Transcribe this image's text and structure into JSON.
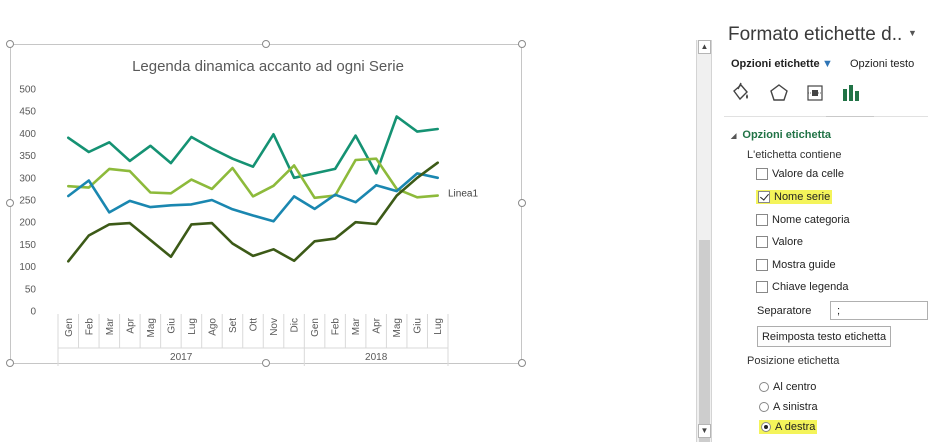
{
  "chart_data": {
    "type": "line",
    "title": "Legenda dinamica accanto ad ogni Serie",
    "categories": [
      "Gen",
      "Feb",
      "Mar",
      "Apr",
      "Mag",
      "Giu",
      "Lug",
      "Ago",
      "Set",
      "Ott",
      "Nov",
      "Dic",
      "Gen",
      "Feb",
      "Mar",
      "Apr",
      "Mag",
      "Giu",
      "Lug"
    ],
    "groups": [
      {
        "label": "2017",
        "start": 0,
        "end": 11
      },
      {
        "label": "2018",
        "start": 12,
        "end": 18
      }
    ],
    "ylim": [
      0,
      500
    ],
    "yticks": [
      "0",
      "50",
      "100",
      "150",
      "200",
      "250",
      "300",
      "350",
      "400",
      "450",
      "500"
    ],
    "grid": false,
    "legend": "none",
    "series_label": "Linea1",
    "series": [
      {
        "color": "#159273",
        "values": [
          390,
          358,
          380,
          338,
          372,
          333,
          392,
          366,
          343,
          325,
          398,
          300,
          310,
          320,
          395,
          310,
          438,
          404,
          410
        ]
      },
      {
        "color": "#8dba3b",
        "values": [
          281,
          278,
          320,
          315,
          267,
          265,
          296,
          275,
          322,
          258,
          282,
          328,
          255,
          260,
          340,
          343,
          275,
          256,
          260
        ]
      },
      {
        "color": "#1a87b0",
        "values": [
          259,
          294,
          222,
          248,
          234,
          238,
          240,
          250,
          229,
          215,
          202,
          258,
          230,
          262,
          245,
          283,
          270,
          310,
          300
        ]
      },
      {
        "color": "#3c5a17",
        "values": [
          112,
          170,
          195,
          198,
          160,
          122,
          195,
          198,
          152,
          124,
          139,
          113,
          157,
          163,
          200,
          196,
          260,
          300,
          334
        ]
      }
    ]
  },
  "pane": {
    "title": "Formato etichette d..",
    "tab_options": "Opzioni etichette",
    "tab_text": "Opzioni testo",
    "icons": [
      "fill-bucket-icon",
      "pentagon-icon",
      "size-properties-icon",
      "bar-chart-icon"
    ],
    "section_title": "Opzioni etichetta",
    "contains_label": "L'etichetta contiene",
    "checkboxes": [
      {
        "label": "Valore da celle",
        "checked": false
      },
      {
        "label": "Nome serie",
        "checked": true
      },
      {
        "label": "Nome categoria",
        "checked": false
      },
      {
        "label": "Valore",
        "checked": false
      },
      {
        "label": "Mostra guide",
        "checked": false
      },
      {
        "label": "Chiave legenda",
        "checked": false
      }
    ],
    "separator_label": "Separatore",
    "separator_value": ";",
    "reset_button": "Reimposta testo etichetta",
    "position_label": "Posizione etichetta",
    "positions": [
      {
        "label": "Al centro",
        "checked": false
      },
      {
        "label": "A sinistra",
        "checked": false
      },
      {
        "label": "A destra",
        "checked": true
      }
    ]
  }
}
